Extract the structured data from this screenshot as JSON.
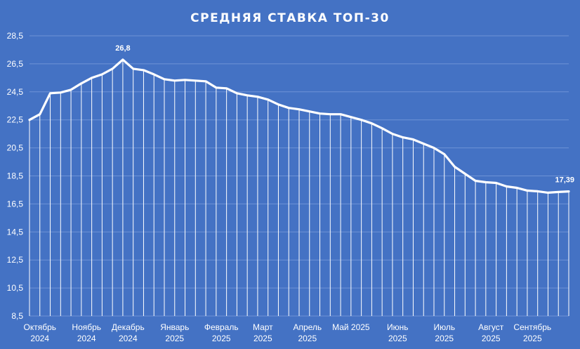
{
  "chart_data": {
    "type": "line",
    "title": "СРЕДНЯЯ СТАВКА ТОП-30",
    "xlabel": "",
    "ylabel": "",
    "ylim": [
      8.5,
      28.5
    ],
    "y_ticks": [
      "8,5",
      "10,5",
      "12,5",
      "14,5",
      "16,5",
      "18,5",
      "20,5",
      "22,5",
      "24,5",
      "26,5",
      "28,5"
    ],
    "y_tick_values": [
      8.5,
      10.5,
      12.5,
      14.5,
      16.5,
      18.5,
      20.5,
      22.5,
      24.5,
      26.5,
      28.5
    ],
    "x_ticks": [
      {
        "line1": "Октябрь",
        "line2": "2024",
        "at": 1
      },
      {
        "line1": "Ноябрь",
        "line2": "2024",
        "at": 5.5
      },
      {
        "line1": "Декабрь",
        "line2": "2024",
        "at": 9.5
      },
      {
        "line1": "Январь",
        "line2": "2025",
        "at": 14
      },
      {
        "line1": "Февраль",
        "line2": "2025",
        "at": 18.5
      },
      {
        "line1": "Март",
        "line2": "2025",
        "at": 22.5
      },
      {
        "line1": "Апрель",
        "line2": "2025",
        "at": 26.8
      },
      {
        "line1": "Май 2025",
        "line2": "",
        "at": 31
      },
      {
        "line1": "Июнь",
        "line2": "2025",
        "at": 35.5
      },
      {
        "line1": "Июль",
        "line2": "2025",
        "at": 40
      },
      {
        "line1": "Август",
        "line2": "2025",
        "at": 44.5
      },
      {
        "line1": "Сентябрь",
        "line2": "2025",
        "at": 48.5
      }
    ],
    "grid": true,
    "legend": "none",
    "drop_lines": true,
    "series": [
      {
        "values": [
          22.5,
          22.9,
          24.4,
          24.45,
          24.65,
          25.1,
          25.5,
          25.75,
          26.15,
          26.8,
          26.15,
          26.05,
          25.75,
          25.4,
          25.3,
          25.35,
          25.3,
          25.25,
          24.8,
          24.75,
          24.4,
          24.25,
          24.15,
          23.95,
          23.6,
          23.35,
          23.25,
          23.1,
          22.95,
          22.9,
          22.9,
          22.7,
          22.5,
          22.25,
          21.9,
          21.5,
          21.25,
          21.1,
          20.8,
          20.5,
          20.05,
          19.15,
          18.65,
          18.15,
          18.05,
          18.0,
          17.75,
          17.65,
          17.45,
          17.4,
          17.3,
          17.35,
          17.39
        ]
      }
    ],
    "data_labels": [
      {
        "index": 9,
        "text": "26,8"
      },
      {
        "index": 52,
        "text": "17,39"
      }
    ]
  },
  "colors": {
    "background": "#4472C4",
    "line": "#FFFFFF",
    "grid": "#6E93D6",
    "text": "#FFFFFF"
  }
}
